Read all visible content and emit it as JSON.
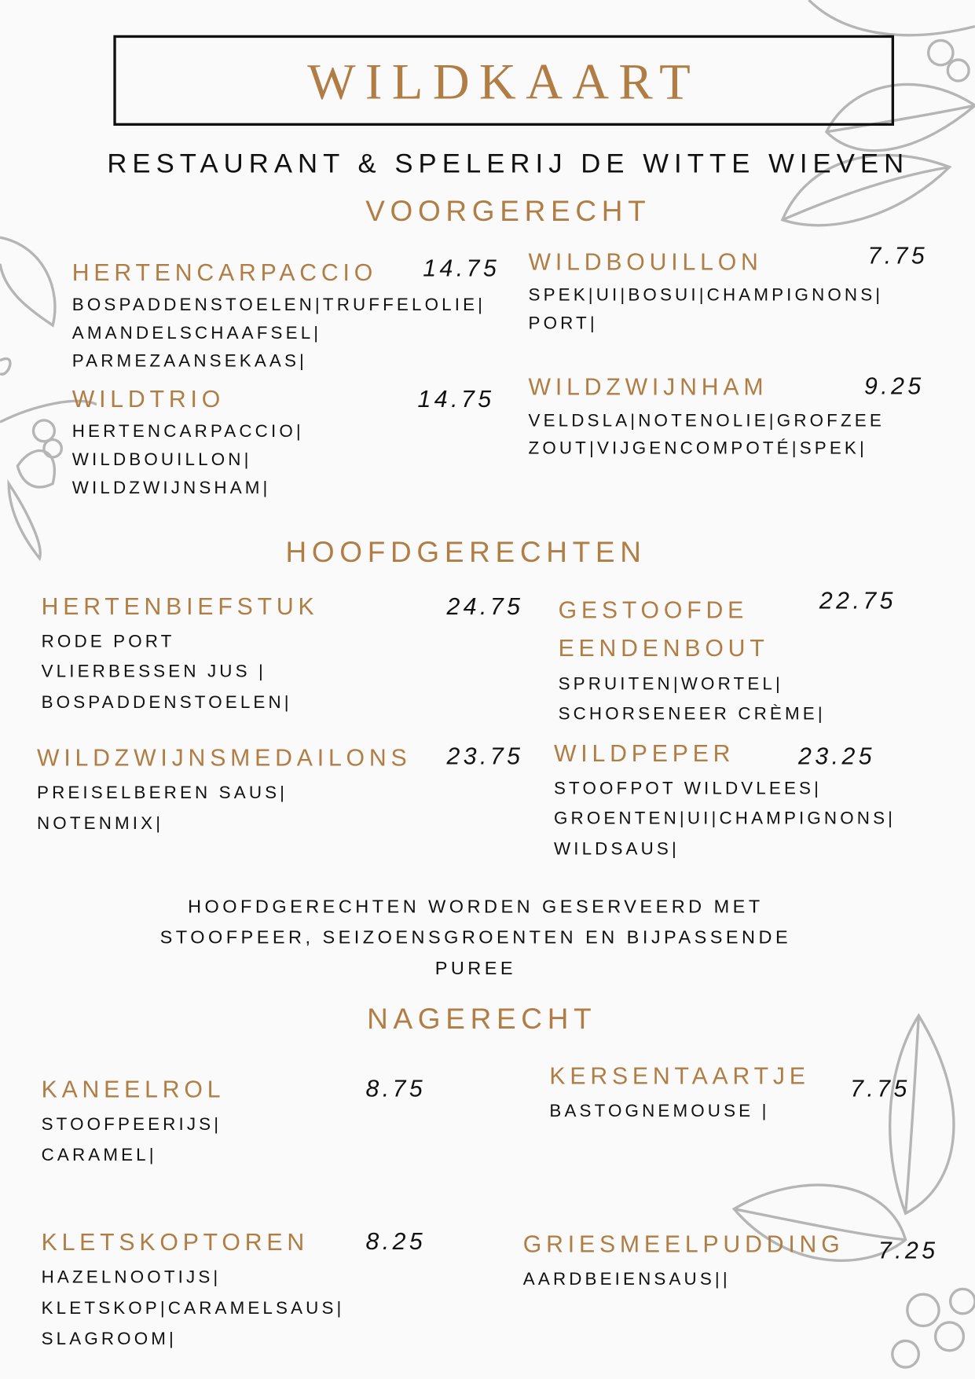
{
  "header": {
    "title": "WILDKAART",
    "subtitle": "RESTAURANT & SPELERIJ DE WITTE WIEVEN"
  },
  "colors": {
    "accent": "#b07e45",
    "text": "#111111",
    "background": "#fafafa",
    "decoration": "#b5b5b5"
  },
  "sections": [
    {
      "title": "VOORGERECHT",
      "items": [
        {
          "name": [
            "HERTENCARPACCIO"
          ],
          "price": "14.75",
          "description": [
            "BOSPADDENSTOELEN|TRUFFELOLIE|",
            "AMANDELSCHAAFSEL|",
            "PARMEZAANSEKAAS|"
          ]
        },
        {
          "name": [
            "WILDTRIO"
          ],
          "price": "14.75",
          "description": [
            "HERTENCARPACCIO|",
            "WILDBOUILLON|",
            "WILDZWIJNSHAM|"
          ]
        },
        {
          "name": [
            "WILDBOUILLON"
          ],
          "price": "7.75",
          "description": [
            "SPEK|UI|BOSUI|CHAMPIGNONS|",
            "PORT|"
          ]
        },
        {
          "name": [
            "WILDZWIJNHAM"
          ],
          "price": "9.25",
          "description": [
            "VELDSLA|NOTENOLIE|GROFZEE",
            "ZOUT|VIJGENCOMPOTÉ|SPEK|"
          ]
        }
      ]
    },
    {
      "title": "HOOFDGERECHTEN",
      "items": [
        {
          "name": [
            "HERTENBIEFSTUK"
          ],
          "price": "24.75",
          "description": [
            "RODE PORT",
            "VLIERBESSEN JUS |",
            "BOSPADDENSTOELEN|"
          ]
        },
        {
          "name": [
            "GESTOOFDE",
            "EENDENBOUT"
          ],
          "price": "22.75",
          "description": [
            "SPRUITEN|WORTEL|",
            "SCHORSENEER CRÈME|"
          ]
        },
        {
          "name": [
            "WILDZWIJNSMEDAILONS"
          ],
          "price": "23.75",
          "description": [
            "PREISELBEREN SAUS|",
            "NOTENMIX|"
          ]
        },
        {
          "name": [
            "WILDPEPER"
          ],
          "price": "23.25",
          "description": [
            "STOOFPOT WILDVLEES|",
            "GROENTEN|UI|CHAMPIGNONS|",
            "WILDSAUS|"
          ]
        }
      ],
      "note": [
        "HOOFDGERECHTEN WORDEN GESERVEERD MET",
        "STOOFPEER, SEIZOENSGROENTEN EN BIJPASSENDE",
        "PUREE"
      ]
    },
    {
      "title": "NAGERECHT",
      "items": [
        {
          "name": [
            "KANEELROL"
          ],
          "price": "8.75",
          "description": [
            "STOOFPEERIJS|",
            "CARAMEL|"
          ]
        },
        {
          "name": [
            "KERSENTAARTJE"
          ],
          "price": "7.75",
          "description": [
            "BASTOGNEMOUSE |"
          ]
        },
        {
          "name": [
            "KLETSKOPTOREN"
          ],
          "price": "8.25",
          "description": [
            "HAZELNOOTIJS|",
            "KLETSKOP|CARAMELSAUS|",
            "SLAGROOM|"
          ]
        },
        {
          "name": [
            "GRIESMEELPUDDING"
          ],
          "price": "7.25",
          "description": [
            "AARDBEIENSAUS||"
          ]
        }
      ]
    }
  ]
}
